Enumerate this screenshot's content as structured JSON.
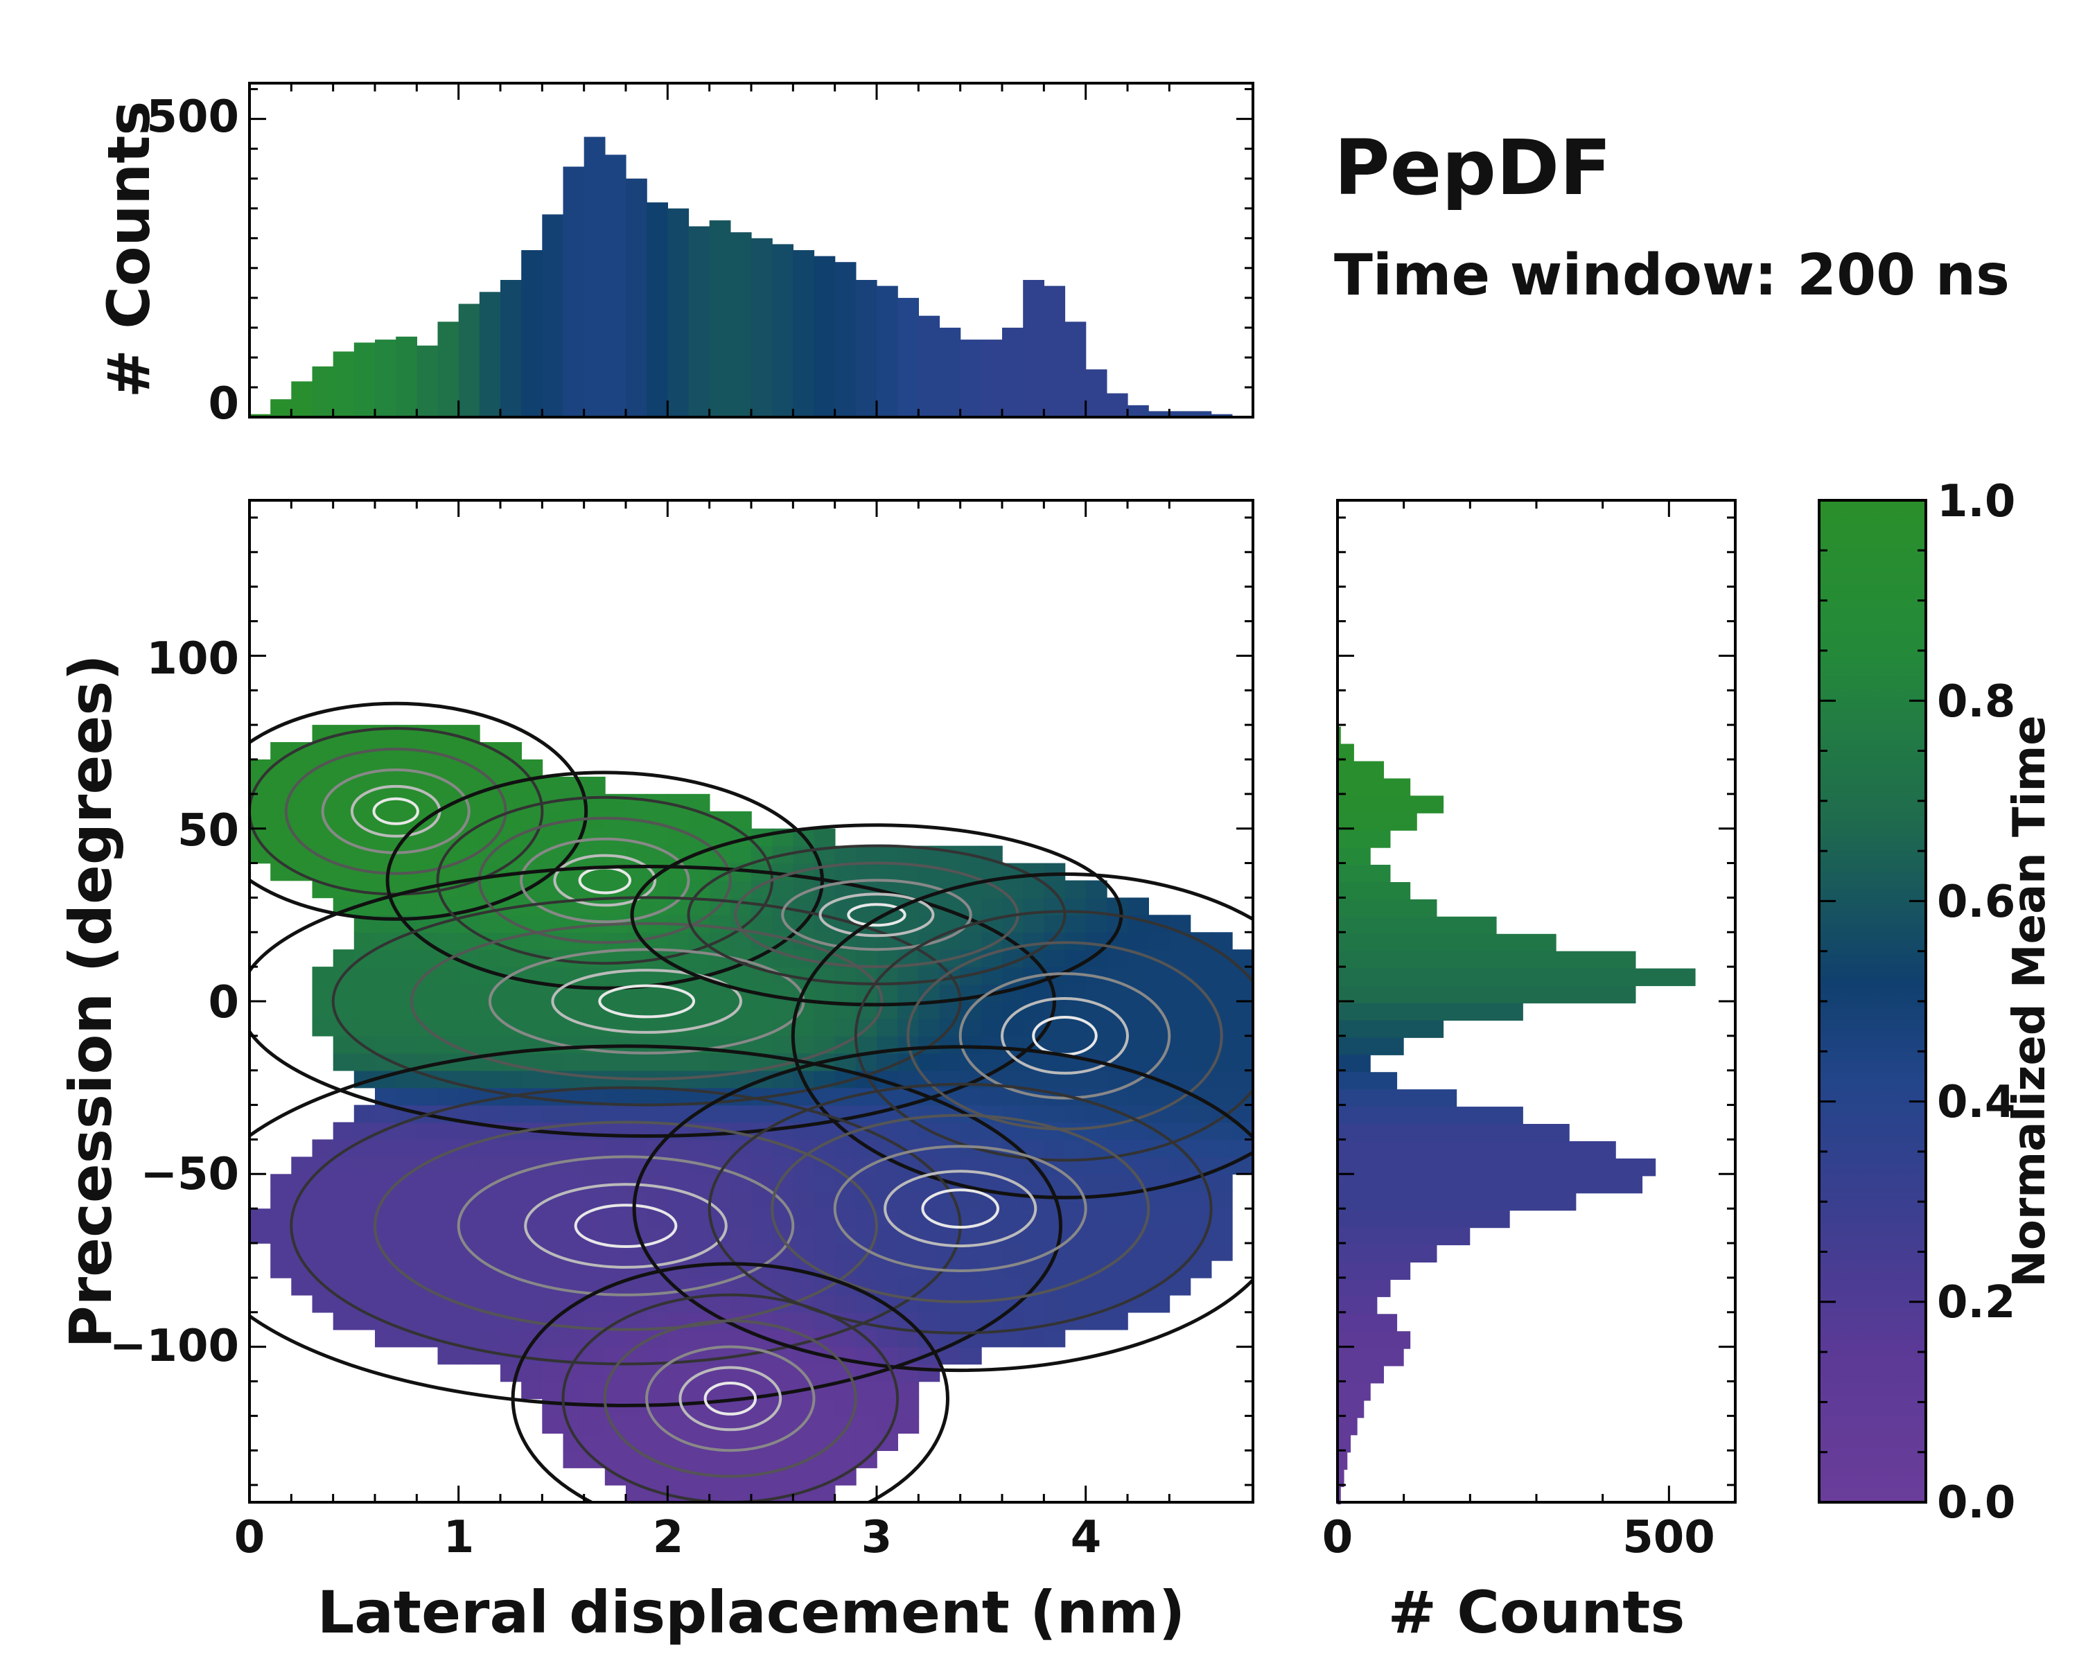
{
  "chart_data": {
    "type": "heatmap",
    "title": "PepDF",
    "subtitle": "Time window: 200 ns",
    "xlabel": "Lateral displacement (nm)",
    "ylabel": "Precession (degrees)",
    "xlim": [
      0,
      4.8
    ],
    "ylim": [
      -145,
      145
    ],
    "xticks": [
      "0",
      "1",
      "2",
      "3",
      "4"
    ],
    "xtick_values": [
      0,
      1,
      2,
      3,
      4
    ],
    "yticks": [
      "100",
      "50",
      "0",
      "−50",
      "−100"
    ],
    "ytick_values": [
      100,
      50,
      0,
      -50,
      -100
    ],
    "colorbar": {
      "label": "Normalized Mean Time",
      "range": [
        0.0,
        1.0
      ],
      "ticks": [
        "0.0",
        "0.2",
        "0.4",
        "0.6",
        "0.8",
        "1.0"
      ],
      "tick_values": [
        0.0,
        0.2,
        0.4,
        0.6,
        0.8,
        1.0
      ],
      "colors": [
        "#6a3d9a",
        "#5b3a96",
        "#3a3f8f",
        "#23458a",
        "#10406e",
        "#1f6b4e",
        "#248a3a",
        "#2a8f2a"
      ]
    },
    "clusters": [
      {
        "name": "upper-left",
        "x": 0.7,
        "y": 55,
        "sx": 0.35,
        "sy": 12,
        "time": 0.95
      },
      {
        "name": "upper-mid",
        "x": 1.7,
        "y": 35,
        "sx": 0.4,
        "sy": 12,
        "time": 0.9
      },
      {
        "name": "center-green",
        "x": 1.9,
        "y": 0,
        "sx": 0.75,
        "sy": 15,
        "time": 0.75
      },
      {
        "name": "center-teal",
        "x": 3.0,
        "y": 25,
        "sx": 0.45,
        "sy": 10,
        "time": 0.65
      },
      {
        "name": "right-blue",
        "x": 3.9,
        "y": -10,
        "sx": 0.5,
        "sy": 18,
        "time": 0.5
      },
      {
        "name": "lower-purple",
        "x": 1.8,
        "y": -65,
        "sx": 0.8,
        "sy": 20,
        "time": 0.2
      },
      {
        "name": "lower-blue",
        "x": 3.4,
        "y": -60,
        "sx": 0.6,
        "sy": 18,
        "time": 0.35
      },
      {
        "name": "bottom-purple",
        "x": 2.3,
        "y": -115,
        "sx": 0.4,
        "sy": 15,
        "time": 0.1
      }
    ],
    "top_histogram": {
      "ylabel": "# Counts",
      "yticks": [
        "0",
        "500"
      ],
      "ytick_values": [
        0,
        500
      ],
      "ylim": [
        0,
        560
      ],
      "x": [
        0.05,
        0.15,
        0.25,
        0.35,
        0.45,
        0.55,
        0.65,
        0.75,
        0.85,
        0.95,
        1.05,
        1.15,
        1.25,
        1.35,
        1.45,
        1.55,
        1.65,
        1.75,
        1.85,
        1.95,
        2.05,
        2.15,
        2.25,
        2.35,
        2.45,
        2.55,
        2.65,
        2.75,
        2.85,
        2.95,
        3.05,
        3.15,
        3.25,
        3.35,
        3.45,
        3.55,
        3.65,
        3.75,
        3.85,
        3.95,
        4.05,
        4.15,
        4.25,
        4.35,
        4.45,
        4.55,
        4.65
      ],
      "counts": [
        5,
        30,
        60,
        85,
        110,
        125,
        130,
        135,
        120,
        160,
        190,
        210,
        230,
        280,
        340,
        420,
        470,
        440,
        400,
        360,
        350,
        320,
        330,
        310,
        300,
        290,
        280,
        270,
        260,
        230,
        220,
        200,
        170,
        150,
        130,
        130,
        150,
        230,
        220,
        160,
        80,
        40,
        20,
        10,
        10,
        10,
        5
      ],
      "times": [
        1.0,
        0.98,
        0.96,
        0.92,
        0.9,
        0.85,
        0.82,
        0.8,
        0.75,
        0.72,
        0.66,
        0.6,
        0.55,
        0.52,
        0.5,
        0.46,
        0.45,
        0.45,
        0.48,
        0.52,
        0.55,
        0.58,
        0.6,
        0.6,
        0.58,
        0.56,
        0.54,
        0.52,
        0.5,
        0.48,
        0.45,
        0.42,
        0.4,
        0.4,
        0.38,
        0.36,
        0.36,
        0.35,
        0.35,
        0.35,
        0.35,
        0.35,
        0.38,
        0.4,
        0.4,
        0.4,
        0.4
      ]
    },
    "side_histogram": {
      "xlabel": "# Counts",
      "xticks": [
        "0",
        "500"
      ],
      "xtick_values": [
        0,
        500
      ],
      "xlim": [
        0,
        600
      ],
      "y": [
        77,
        72,
        67,
        62,
        57,
        52,
        47,
        42,
        37,
        32,
        27,
        22,
        17,
        12,
        7,
        2,
        -3,
        -8,
        -13,
        -18,
        -23,
        -28,
        -33,
        -38,
        -43,
        -48,
        -53,
        -58,
        -63,
        -68,
        -73,
        -78,
        -83,
        -88,
        -93,
        -98,
        -103,
        -108,
        -113,
        -118,
        -123,
        -128,
        -133,
        -138,
        -143
      ],
      "counts": [
        5,
        25,
        70,
        110,
        160,
        120,
        80,
        50,
        80,
        110,
        150,
        240,
        330,
        450,
        540,
        450,
        280,
        160,
        100,
        50,
        90,
        180,
        280,
        350,
        420,
        480,
        460,
        360,
        260,
        200,
        150,
        110,
        80,
        60,
        90,
        110,
        100,
        70,
        50,
        40,
        30,
        20,
        15,
        10,
        5
      ],
      "times": [
        1.0,
        0.98,
        0.97,
        0.96,
        0.95,
        0.94,
        0.9,
        0.85,
        0.82,
        0.8,
        0.78,
        0.76,
        0.74,
        0.72,
        0.7,
        0.68,
        0.64,
        0.6,
        0.56,
        0.5,
        0.45,
        0.4,
        0.36,
        0.32,
        0.3,
        0.3,
        0.3,
        0.3,
        0.28,
        0.26,
        0.24,
        0.22,
        0.2,
        0.18,
        0.16,
        0.14,
        0.12,
        0.12,
        0.1,
        0.1,
        0.08,
        0.08,
        0.06,
        0.05,
        0.05
      ]
    }
  }
}
